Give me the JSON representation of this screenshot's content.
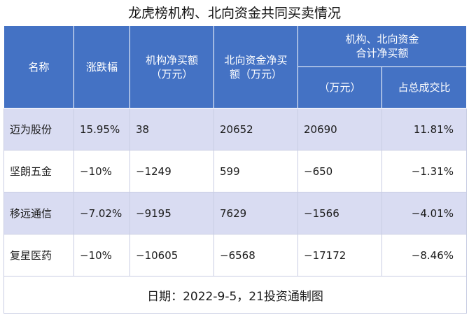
{
  "title": "龙虎榜机构、北向资金共同买卖情况",
  "headers": {
    "name": "名称",
    "change": "涨跌幅",
    "inst": [
      "机构净买额",
      "（万元）"
    ],
    "north": [
      "北向资金净买",
      "额（万元）"
    ],
    "combined": [
      "机构、北向资金",
      "合计净买额"
    ],
    "combined_unit": "（万元）",
    "combined_ratio": "占总成交比"
  },
  "rows": [
    {
      "name": "迈为股份",
      "change": "15.95%",
      "inst": "38",
      "north": "20652",
      "total": "20690",
      "ratio": "11.81%"
    },
    {
      "name": "坚朗五金",
      "change": "−10%",
      "inst": "−1249",
      "north": "599",
      "total": "−650",
      "ratio": "−1.31%"
    },
    {
      "name": "移远通信",
      "change": "−7.02%",
      "inst": "−9195",
      "north": "7629",
      "total": "−1566",
      "ratio": "−4.01%"
    },
    {
      "name": "复星医药",
      "change": "−10%",
      "inst": "−10605",
      "north": "−6568",
      "total": "−17172",
      "ratio": "−8.46%"
    }
  ],
  "footer": "日期：2022-9-5，21投资通制图",
  "colors": {
    "header_bg": "#4472c4",
    "row_shade": "#d9dcf2"
  }
}
